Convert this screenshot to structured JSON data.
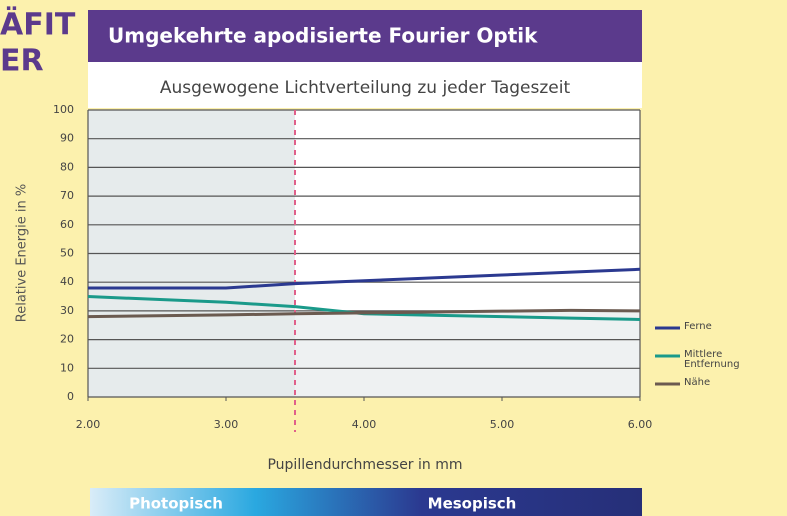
{
  "chart_data": {
    "type": "line",
    "title": "Umgekehrte apodisierte Fourier Optik",
    "subtitle": "Ausgewogene Lichtverteilung zu jeder Tageszeit",
    "annotations": [
      "ÄFIT",
      "ER"
    ],
    "x_label": "Pupillendurchmesser in mm",
    "y_label": "Relative Energie in %",
    "bands": [
      "Photopisch",
      "Mesopisch"
    ],
    "x": [
      2,
      2.5,
      3,
      3.5,
      4,
      4.5,
      5,
      5.5,
      6
    ],
    "series": [
      {
        "name": "Ferne",
        "color": "#2b3990",
        "values": [
          38,
          38,
          38,
          39.5,
          40.5,
          41.5,
          42.5,
          43.5,
          44.5
        ]
      },
      {
        "name": "Mittlere Entfernung",
        "color": "#1a9a8a",
        "values": [
          35,
          34,
          33,
          31.5,
          29,
          28.5,
          28,
          27.5,
          27
        ]
      },
      {
        "name": "Nähe",
        "color": "#6b5a50",
        "values": [
          28,
          28.3,
          28.6,
          29,
          29.3,
          29.6,
          29.9,
          30.2,
          30
        ]
      }
    ],
    "vline": 3.5,
    "xlim": [
      2,
      6
    ],
    "xticks": [
      {
        "value": 2,
        "label": "2.00"
      },
      {
        "value": 3,
        "label": "3.00"
      },
      {
        "value": 4,
        "label": "4.00"
      },
      {
        "value": 5,
        "label": "5.00"
      },
      {
        "value": 6,
        "label": "6.00"
      }
    ],
    "ylim": [
      0,
      100
    ],
    "yticks": [
      0,
      10,
      20,
      30,
      40,
      50,
      60,
      70,
      80,
      90,
      100
    ],
    "grid": true,
    "legend": "right"
  }
}
